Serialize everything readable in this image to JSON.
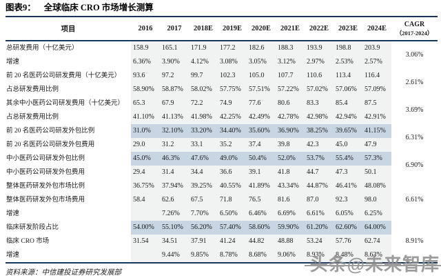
{
  "title": {
    "prefix": "图表9：",
    "text": "全球临床 CRO 市场增长测算"
  },
  "table": {
    "item_header": "项目",
    "year_headers": [
      "2016",
      "2017",
      "2018E",
      "2019E",
      "2020E",
      "2021E",
      "2022E",
      "2023E",
      "2024E"
    ],
    "cagr_header_line1": "CAGR",
    "cagr_header_line2": "（2017-2024）",
    "rows": [
      {
        "label": "总研发费用（十亿美元）",
        "highlight": false,
        "values": [
          "158.9",
          "165.1",
          "171.9",
          "177.2",
          "182.6",
          "188.3",
          "193.9",
          "198.8",
          "203.9"
        ]
      },
      {
        "label": "增速",
        "highlight": false,
        "values": [
          "6.36%",
          "3.90%",
          "4.12%",
          "3.08%",
          "3.05%",
          "3.12%",
          "2.97%",
          "2.53%",
          "2.57%"
        ]
      },
      {
        "label": "前 20 名医药公司研发费用（十亿美元）",
        "highlight": false,
        "values": [
          "93.6",
          "97.2",
          "99.7",
          "102.3",
          "105.0",
          "107.7",
          "110.6",
          "113.4",
          "116.4"
        ]
      },
      {
        "label": "占总研发费用比例",
        "highlight": false,
        "values": [
          "58.90%",
          "58.87%",
          "58.02%",
          "57.75%",
          "57.51%",
          "57.22%",
          "57.02%",
          "57.06%",
          "57.09%"
        ]
      },
      {
        "label": "其余中小医药公司研发费用（十亿美元）",
        "highlight": false,
        "values": [
          "65.3",
          "67.9",
          "72.2",
          "74.9",
          "77.6",
          "80.6",
          "83.3",
          "85.4",
          "87.5"
        ]
      },
      {
        "label": "占总研发费用比例",
        "highlight": false,
        "values": [
          "41.10%",
          "41.13%",
          "41.98%",
          "42.25%",
          "42.49%",
          "42.78%",
          "42.98%",
          "42.94%",
          "42.91%"
        ]
      },
      {
        "label": "前 20 名医药公司研发外包比例",
        "highlight": true,
        "values": [
          "31.0%",
          "32.10%",
          "33.20%",
          "34.40%",
          "35.60%",
          "36.90%",
          "38.25%",
          "39.65%",
          "41.15%"
        ]
      },
      {
        "label": "前 20 名医药公司研发外包费用",
        "highlight": false,
        "values": [
          "29.0",
          "31.2",
          "33.1",
          "35.2",
          "37.4",
          "39.8",
          "42.3",
          "45.0",
          "47.9"
        ]
      },
      {
        "label": "中小医药公司研发外包比例",
        "highlight": true,
        "values": [
          "45.0%",
          "46.3%",
          "47.6%",
          "49.0%",
          "50.4%",
          "52.0%",
          "53.7%",
          "55.4%",
          "57.3%"
        ]
      },
      {
        "label": "中小医药公司研发外包费用",
        "highlight": false,
        "values": [
          "29.4",
          "31.4",
          "34.4",
          "36.6",
          "39.1",
          "41.8",
          "44.7",
          "47.3",
          "50.1"
        ]
      },
      {
        "label": "整体医药研发外包市场比例",
        "highlight": false,
        "values": [
          "36.75%",
          "37.94%",
          "39.25%",
          "40.55%",
          "41.89%",
          "43.34%",
          "44.87%",
          "46.41%",
          "48.08%"
        ]
      },
      {
        "label": "整体医药研发外包市场费用",
        "highlight": false,
        "values": [
          "58.4",
          "62.6",
          "67.5",
          "71.8",
          "76.5",
          "81.6",
          "87.0",
          "92.3",
          "98.0"
        ]
      },
      {
        "label": "增速",
        "highlight": false,
        "values": [
          "",
          "7.26%",
          "7.70%",
          "6.50%",
          "6.46%",
          "6.69%",
          "6.61%",
          "6.05%",
          "6.25%"
        ]
      },
      {
        "label": "临床研发阶段占比",
        "highlight": true,
        "values": [
          "54.00%",
          "55.10%",
          "56.20%",
          "57.40%",
          "58.60%",
          "59.90%",
          "61.20%",
          "62.60%",
          "64.00%"
        ]
      },
      {
        "label": "临床 CRO 市场",
        "highlight": false,
        "values": [
          "31.54",
          "34.51",
          "37.91",
          "41.24",
          "44.82",
          "48.88",
          "53.24",
          "57.76",
          "62.74"
        ]
      },
      {
        "label": "增速",
        "highlight": false,
        "values": [
          "",
          "9.44%",
          "9.85%",
          "8.78%",
          "8.68%",
          "9.06%",
          "8.93%",
          "8.48%",
          "8.63%"
        ]
      }
    ],
    "cagr_groups": [
      {
        "value": "3.06%",
        "span": 2
      },
      {
        "value": "2.61%",
        "span": 2
      },
      {
        "value": "3.69%",
        "span": 2
      },
      {
        "value": "6.31%",
        "span": 2
      },
      {
        "value": "6.90%",
        "span": 2
      },
      {
        "value": "6.61%",
        "span": 3
      },
      {
        "value": "8.91%",
        "span": 3
      }
    ],
    "layout": {
      "label_col_width": 182,
      "year_col_width": 42,
      "cagr_col_width": 67
    }
  },
  "source": "资料来源：中信建投证券研究发展部",
  "watermark": "头条@未来智库",
  "colors": {
    "rule": "#17365d",
    "highlight": "#c7d6e2",
    "data_bg": "#f1f2f2",
    "watermark_gray": "#8f8f8f"
  }
}
